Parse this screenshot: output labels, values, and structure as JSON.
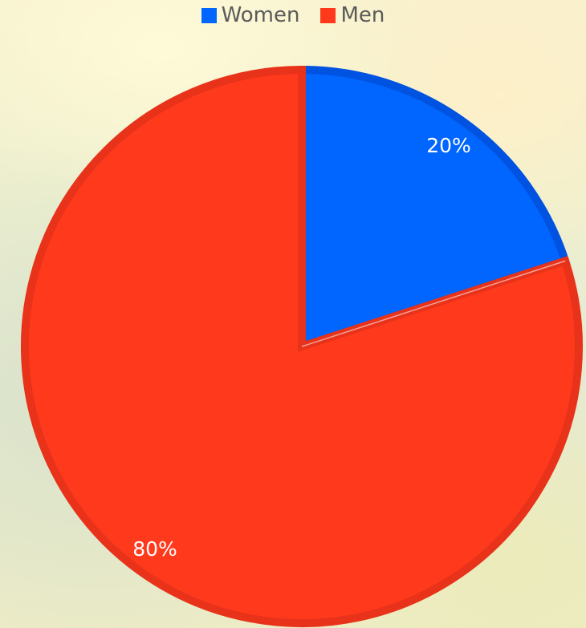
{
  "chart_data": {
    "type": "pie",
    "legend_position": "top",
    "start_angle_deg": 0,
    "direction": "clockwise",
    "slices": [
      {
        "name": "Women",
        "value": 20,
        "label": "20%",
        "color": "#0066ff",
        "stroke": "#0052e0"
      },
      {
        "name": "Men",
        "value": 80,
        "label": "80%",
        "color": "#ff3a1c",
        "stroke": "#e8321a"
      }
    ]
  }
}
